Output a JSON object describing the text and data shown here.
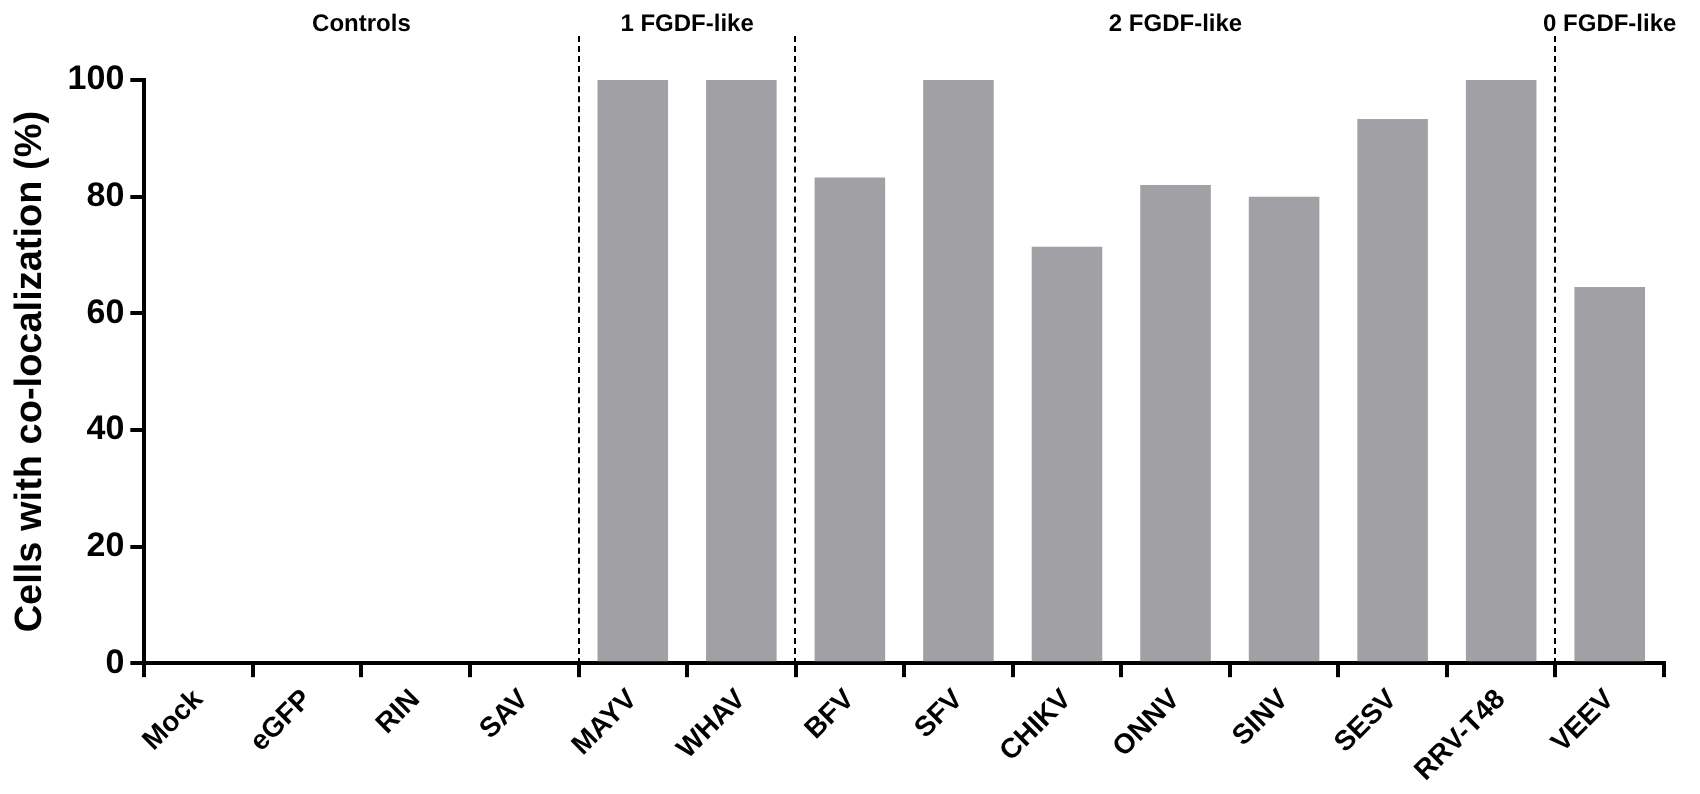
{
  "chart_data": {
    "type": "bar",
    "ylabel": "Cells with co-localization (%)",
    "categories": [
      "Mock",
      "eGFP",
      "RIN",
      "SAV",
      "MAYV",
      "WHAV",
      "BFV",
      "SFV",
      "CHIKV",
      "ONNV",
      "SINV",
      "SESV",
      "RRV-T48",
      "VEEV"
    ],
    "values": [
      0,
      0,
      0,
      0,
      100,
      100,
      83.3,
      100,
      71.4,
      82,
      80,
      93.3,
      100,
      64.5
    ],
    "color": "#a0a0a5",
    "ylim": [
      0,
      100
    ],
    "yticks": [
      0,
      20,
      40,
      60,
      80,
      100
    ],
    "grid": false,
    "legend": false,
    "annotations": [
      "Controls",
      "1 FGDF-like",
      "2 FGDF-like",
      "0 FGDF-like"
    ]
  }
}
